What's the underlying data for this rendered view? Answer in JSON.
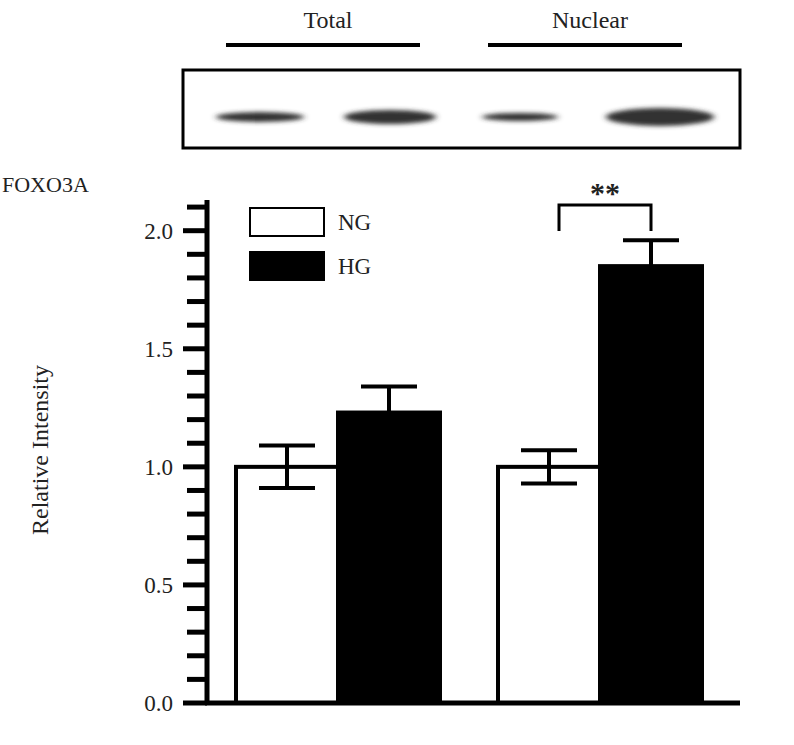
{
  "chart_data": {
    "type": "bar",
    "blot_label": "FOXO3A",
    "y_label": "Relative Intensity",
    "categories": [
      "Total",
      "Nuclear"
    ],
    "series": [
      {
        "name": "NG",
        "color": "#ffffff",
        "values": [
          1.0,
          1.0
        ],
        "errors": [
          0.09,
          0.07
        ]
      },
      {
        "name": "HG",
        "color": "#000000",
        "values": [
          1.23,
          1.85
        ],
        "errors": [
          0.11,
          0.11
        ]
      }
    ],
    "annotation": "**",
    "ylim": [
      0,
      2.13
    ],
    "yticks": [
      {
        "value": 0,
        "label": "0.0"
      },
      {
        "value": 0.5,
        "label": "0.5"
      },
      {
        "value": 1,
        "label": "1.0"
      },
      {
        "value": 1.5,
        "label": "1.5"
      },
      {
        "value": 2,
        "label": "2.0"
      }
    ],
    "minor_yticks": [
      0.1,
      0.2,
      0.3,
      0.4,
      0.6,
      0.7,
      0.8,
      0.9,
      1.1,
      1.2,
      1.3,
      1.4,
      1.6,
      1.7,
      1.8,
      1.9,
      2.1
    ],
    "legend": "top-left",
    "grid": false
  }
}
